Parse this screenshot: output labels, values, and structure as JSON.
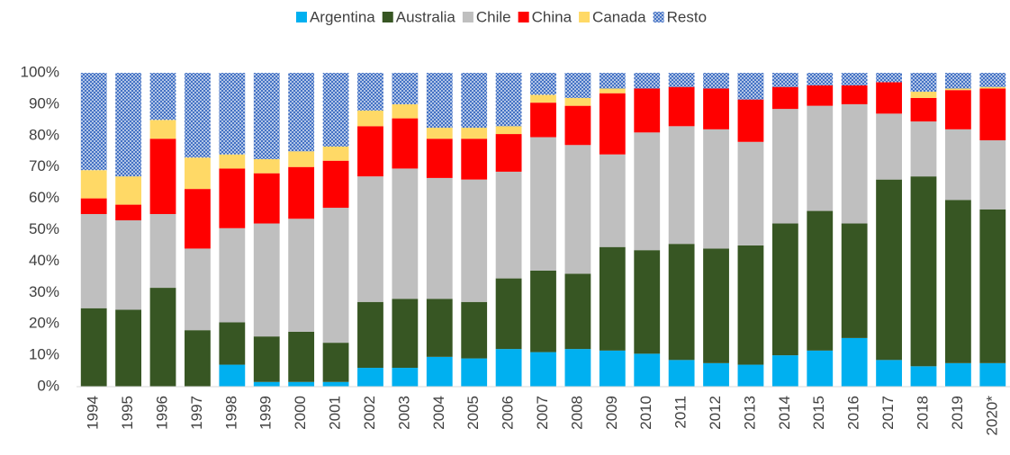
{
  "chart_data": {
    "type": "stacked_bar",
    "categories": [
      "1994",
      "1995",
      "1996",
      "1997",
      "1998",
      "1999",
      "2000",
      "2001",
      "2002",
      "2003",
      "2004",
      "2005",
      "2006",
      "2007",
      "2008",
      "2009",
      "2010",
      "2011",
      "2012",
      "2013",
      "2014",
      "2015",
      "2016",
      "2017",
      "2018",
      "2019",
      "2020*"
    ],
    "series": [
      {
        "name": "Argentina",
        "color": "#00b0f0",
        "values": [
          0,
          0,
          0,
          0,
          7,
          1.5,
          1.5,
          1.5,
          6,
          6,
          9.5,
          9,
          12,
          11,
          12,
          11.5,
          10.5,
          8.5,
          7.5,
          7,
          10,
          11.5,
          15.5,
          8.5,
          6.5,
          7.5,
          7.5
        ]
      },
      {
        "name": "Australia",
        "color": "#375623",
        "values": [
          25,
          24.5,
          31.5,
          18,
          13.5,
          14.5,
          16,
          12.5,
          21,
          22,
          18.5,
          18,
          22.5,
          26,
          24,
          33,
          33,
          37,
          36.5,
          38,
          42,
          44.5,
          36.5,
          57.5,
          60.5,
          52,
          49
        ]
      },
      {
        "name": "Chile",
        "color": "#bfbfbf",
        "values": [
          30,
          28.5,
          23.5,
          26,
          30,
          36,
          36,
          43,
          40,
          41.5,
          38.5,
          39,
          34,
          42.5,
          41,
          29.5,
          37.5,
          37.5,
          38,
          33,
          36.5,
          33.5,
          38,
          21,
          17.5,
          22.5,
          22
        ]
      },
      {
        "name": "China",
        "color": "#ff0000",
        "values": [
          5,
          5,
          24,
          19,
          19,
          16,
          16.5,
          15,
          16,
          16,
          12.5,
          13,
          12,
          11,
          12.5,
          19.5,
          14,
          12.5,
          13,
          13.5,
          7,
          6.5,
          6,
          10,
          7.5,
          12.5,
          16.5
        ]
      },
      {
        "name": "Canada",
        "color": "#ffd966",
        "values": [
          9,
          9,
          6,
          10,
          4.5,
          4.5,
          5,
          4.5,
          5,
          4.5,
          3.5,
          3.5,
          2.5,
          2.5,
          2.5,
          1.5,
          0,
          0,
          0,
          0,
          0,
          0,
          0,
          0,
          2,
          0.5,
          0.5
        ]
      },
      {
        "name": "Resto",
        "color": "#4472c4",
        "pattern": "dots",
        "values": [
          31,
          33,
          15,
          27,
          26,
          27.5,
          25,
          23.5,
          12,
          10,
          17.5,
          17.5,
          17,
          7,
          8,
          5,
          5,
          4.5,
          5,
          8.5,
          4.5,
          4,
          4,
          3,
          6,
          5,
          4.5
        ]
      }
    ],
    "ylim": [
      0,
      100
    ],
    "yticks": [
      {
        "value": 0,
        "label": "0%"
      },
      {
        "value": 10,
        "label": "10%"
      },
      {
        "value": 20,
        "label": "20%"
      },
      {
        "value": 30,
        "label": "30%"
      },
      {
        "value": 40,
        "label": "40%"
      },
      {
        "value": 50,
        "label": "50%"
      },
      {
        "value": 60,
        "label": "60%"
      },
      {
        "value": 70,
        "label": "70%"
      },
      {
        "value": 80,
        "label": "80%"
      },
      {
        "value": 90,
        "label": "90%"
      },
      {
        "value": 100,
        "label": "100%"
      }
    ],
    "legend": "top"
  }
}
